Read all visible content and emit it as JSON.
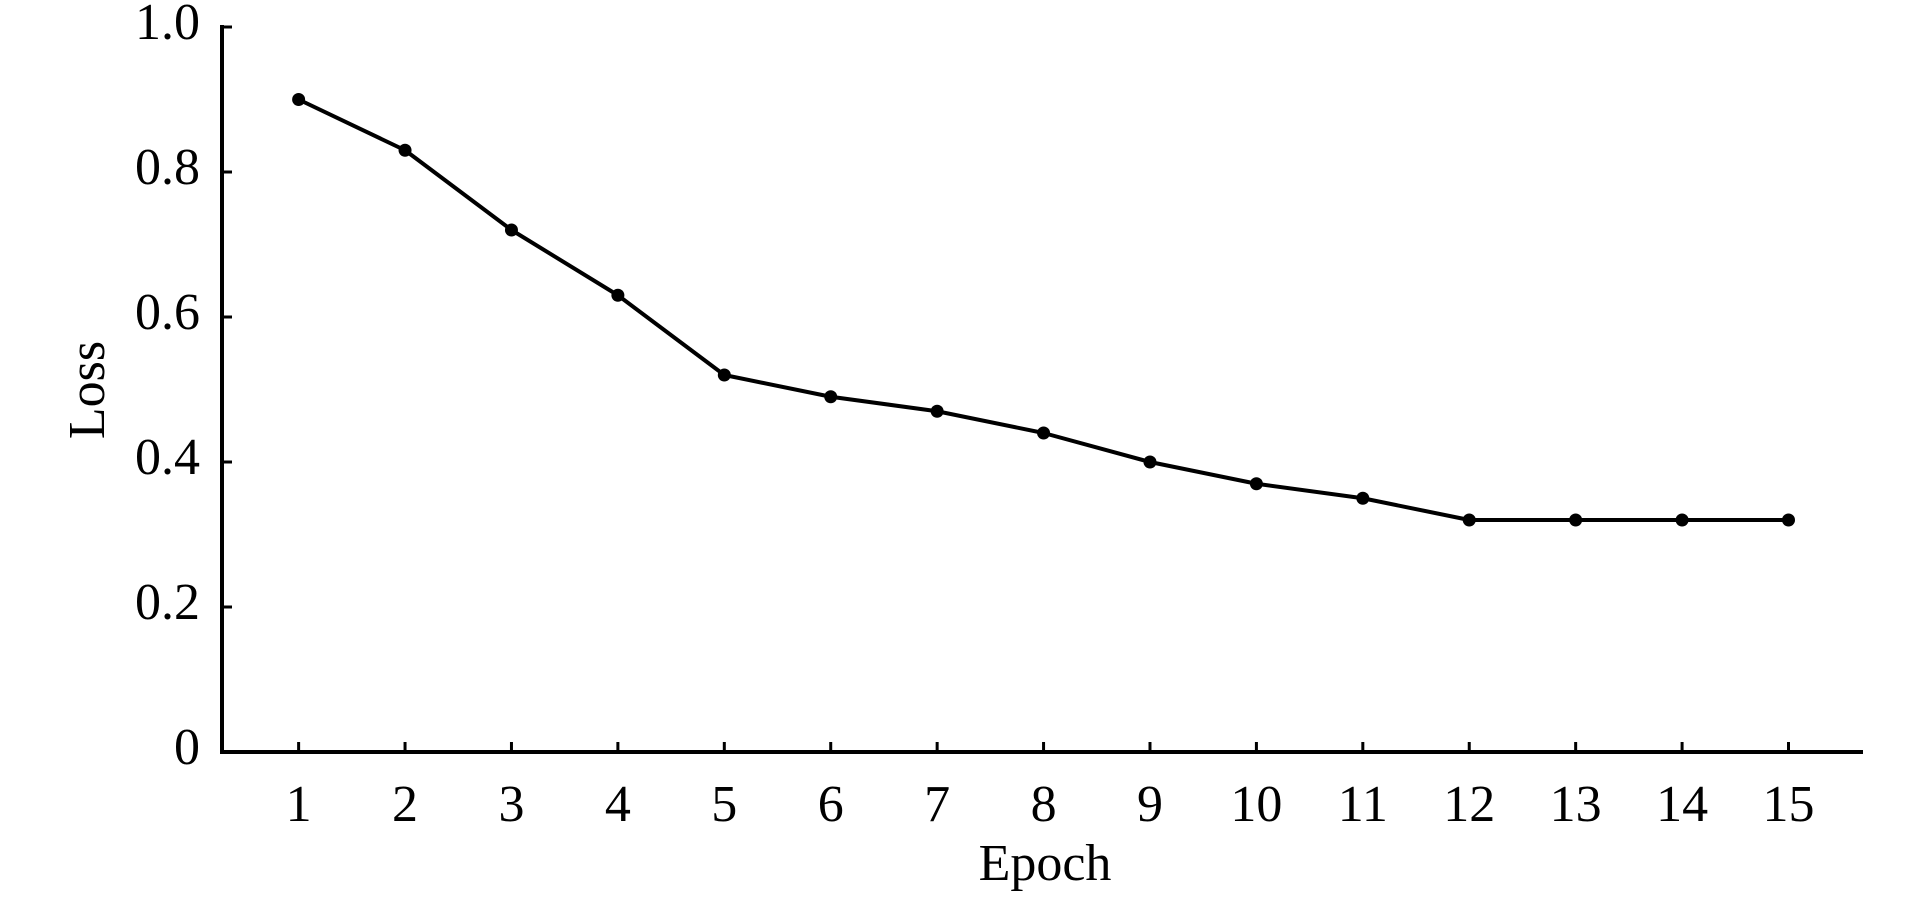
{
  "chart_data": {
    "type": "line",
    "x_label": "Epoch",
    "y_label": "Loss",
    "x": [
      1,
      2,
      3,
      4,
      5,
      6,
      7,
      8,
      9,
      10,
      11,
      12,
      13,
      14,
      15
    ],
    "series": [
      {
        "color": "#000000",
        "values": [
          0.9,
          0.83,
          0.72,
          0.63,
          0.52,
          0.49,
          0.47,
          0.44,
          0.4,
          0.37,
          0.35,
          0.32,
          0.32,
          0.32,
          0.32
        ]
      }
    ],
    "xlim": [
      0.28,
      15.7
    ],
    "ylim": [
      0,
      1
    ],
    "xticks": [
      1,
      2,
      3,
      4,
      5,
      6,
      7,
      8,
      9,
      10,
      11,
      12,
      13,
      14,
      15
    ],
    "yticks": [
      0,
      0.2,
      0.4,
      0.6,
      0.8,
      {
        "value": 1,
        "label": "1.0"
      }
    ]
  }
}
